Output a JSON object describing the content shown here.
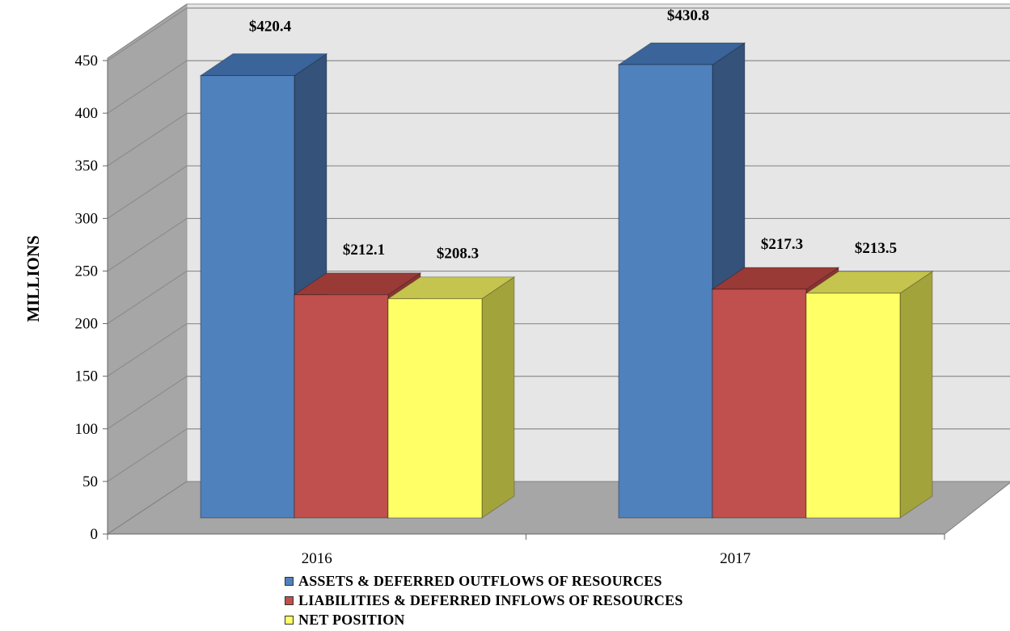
{
  "chart_data": {
    "type": "bar",
    "title": "",
    "xlabel": "",
    "ylabel": "MILLIONS",
    "ylim": [
      0,
      450
    ],
    "yticks": [
      0,
      50,
      100,
      150,
      200,
      250,
      300,
      350,
      400,
      450
    ],
    "grid": true,
    "legend_position": "bottom",
    "categories": [
      "2016",
      "2017"
    ],
    "series": [
      {
        "name": "ASSETS & DEFERRED OUTFLOWS OF RESOURCES",
        "values": [
          420.4,
          430.8
        ],
        "labels": [
          "$420.4",
          "$430.8"
        ],
        "color": "#4f81bd",
        "side_color": "#34527a",
        "top_color": "#3a649a"
      },
      {
        "name": "LIABILITIES & DEFERRED INFLOWS OF RESOURCES",
        "values": [
          212.1,
          217.3
        ],
        "labels": [
          "$212.1",
          "$217.3"
        ],
        "color": "#c0504d",
        "side_color": "#8b3432",
        "top_color": "#993a37"
      },
      {
        "name": "NET POSITION",
        "values": [
          208.3,
          213.5
        ],
        "labels": [
          "$208.3",
          "$213.5"
        ],
        "color": "#ffff66",
        "side_color": "#a3a33c",
        "top_color": "#c4c44e"
      }
    ]
  }
}
